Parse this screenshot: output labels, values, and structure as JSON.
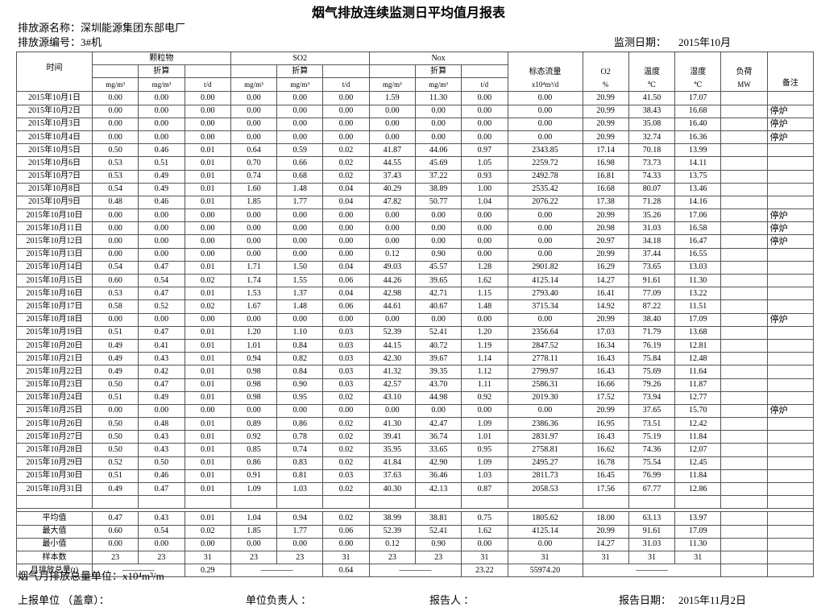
{
  "header": {
    "title": "烟气排放连续监测日平均值月报表",
    "source_name": "排放源名称：深圳能源集团东部电厂",
    "source_id": "排放源编号：3#机",
    "date_label": "监测日期：",
    "date": "2015年10月"
  },
  "table": {
    "head": {
      "time": "时间",
      "groups": [
        {
          "name": "颗粒物",
          "sub": "折算",
          "units": [
            "mg/m³",
            "mg/m³",
            "t/d"
          ]
        },
        {
          "name": "SO2",
          "sub": "折算",
          "units": [
            "mg/m³",
            "mg/m³",
            "t/d"
          ]
        },
        {
          "name": "Nox",
          "sub": "折算",
          "units": [
            "mg/m³",
            "mg/m³",
            "t/d"
          ]
        }
      ],
      "singles": [
        {
          "label": "标态流量",
          "unit": "x10⁴m³/d"
        },
        {
          "label": "O2",
          "unit": "%"
        },
        {
          "label": "温度",
          "unit": "℃"
        },
        {
          "label": "湿度",
          "unit": "℃"
        },
        {
          "label": "负荷",
          "unit": "MW"
        },
        {
          "label": "备注"
        }
      ]
    },
    "rows": [
      {
        "date": "2015年10月1日",
        "values": [
          "0.00",
          "0.00",
          "0.00",
          "0.00",
          "0.00",
          "0.00",
          "1.59",
          "11.30",
          "0.00",
          "0.00",
          "20.99",
          "41.50",
          "17.07"
        ]
      },
      {
        "date": "2015年10月2日",
        "values": [
          "0.00",
          "0.00",
          "0.00",
          "0.00",
          "0.00",
          "0.00",
          "0.00",
          "0.00",
          "0.00",
          "0.00",
          "20.99",
          "38.43",
          "16.68"
        ],
        "note": "停炉"
      },
      {
        "date": "2015年10月3日",
        "values": [
          "0.00",
          "0.00",
          "0.00",
          "0.00",
          "0.00",
          "0.00",
          "0.00",
          "0.00",
          "0.00",
          "0.00",
          "20.99",
          "35.08",
          "16.40"
        ],
        "note": "停炉"
      },
      {
        "date": "2015年10月4日",
        "values": [
          "0.00",
          "0.00",
          "0.00",
          "0.00",
          "0.00",
          "0.00",
          "0.00",
          "0.00",
          "0.00",
          "0.00",
          "20.99",
          "32.74",
          "16.36"
        ],
        "note": "停炉"
      },
      {
        "date": "2015年10月5日",
        "values": [
          "0.50",
          "0.46",
          "0.01",
          "0.64",
          "0.59",
          "0.02",
          "41.87",
          "44.06",
          "0.97",
          "2343.85",
          "17.14",
          "70.18",
          "13.99"
        ]
      },
      {
        "date": "2015年10月6日",
        "values": [
          "0.53",
          "0.51",
          "0.01",
          "0.70",
          "0.66",
          "0.02",
          "44.55",
          "45.69",
          "1.05",
          "2259.72",
          "16.98",
          "73.73",
          "14.11"
        ]
      },
      {
        "date": "2015年10月7日",
        "values": [
          "0.53",
          "0.49",
          "0.01",
          "0.74",
          "0.68",
          "0.02",
          "37.43",
          "37.22",
          "0.93",
          "2492.78",
          "16.81",
          "74.33",
          "13.75"
        ]
      },
      {
        "date": "2015年10月8日",
        "values": [
          "0.54",
          "0.49",
          "0.01",
          "1.60",
          "1.48",
          "0.04",
          "40.29",
          "38.89",
          "1.00",
          "2535.42",
          "16.68",
          "80.07",
          "13.46"
        ]
      },
      {
        "date": "2015年10月9日",
        "values": [
          "0.48",
          "0.46",
          "0.01",
          "1.85",
          "1.77",
          "0.04",
          "47.82",
          "50.77",
          "1.04",
          "2076.22",
          "17.38",
          "71.28",
          "14.16"
        ]
      },
      {
        "date": "2015年10月10日",
        "values": [
          "0.00",
          "0.00",
          "0.00",
          "0.00",
          "0.00",
          "0.00",
          "0.00",
          "0.00",
          "0.00",
          "0.00",
          "20.99",
          "35.26",
          "17.06"
        ],
        "note": "停炉"
      },
      {
        "date": "2015年10月11日",
        "values": [
          "0.00",
          "0.00",
          "0.00",
          "0.00",
          "0.00",
          "0.00",
          "0.00",
          "0.00",
          "0.00",
          "0.00",
          "20.98",
          "31.03",
          "16.58"
        ],
        "note": "停炉"
      },
      {
        "date": "2015年10月12日",
        "values": [
          "0.00",
          "0.00",
          "0.00",
          "0.00",
          "0.00",
          "0.00",
          "0.00",
          "0.00",
          "0.00",
          "0.00",
          "20.97",
          "34.18",
          "16.47"
        ],
        "note": "停炉"
      },
      {
        "date": "2015年10月13日",
        "values": [
          "0.00",
          "0.00",
          "0.00",
          "0.00",
          "0.00",
          "0.00",
          "0.12",
          "0.90",
          "0.00",
          "0.00",
          "20.99",
          "37.44",
          "16.55"
        ]
      },
      {
        "date": "2015年10月14日",
        "values": [
          "0.54",
          "0.47",
          "0.01",
          "1.71",
          "1.50",
          "0.04",
          "49.03",
          "45.57",
          "1.28",
          "2901.82",
          "16.29",
          "73.65",
          "13.03"
        ]
      },
      {
        "date": "2015年10月15日",
        "values": [
          "0.60",
          "0.54",
          "0.02",
          "1.74",
          "1.55",
          "0.06",
          "44.26",
          "39.65",
          "1.62",
          "4125.14",
          "14.27",
          "91.61",
          "11.30"
        ]
      },
      {
        "date": "2015年10月16日",
        "values": [
          "0.53",
          "0.47",
          "0.01",
          "1.53",
          "1.37",
          "0.04",
          "42.98",
          "42.71",
          "1.15",
          "2793.40",
          "16.41",
          "77.09",
          "13.22"
        ]
      },
      {
        "date": "2015年10月17日",
        "values": [
          "0.58",
          "0.52",
          "0.02",
          "1.67",
          "1.48",
          "0.06",
          "44.61",
          "40.67",
          "1.48",
          "3715.34",
          "14.92",
          "87.22",
          "11.51"
        ]
      },
      {
        "date": "2015年10月18日",
        "values": [
          "0.00",
          "0.00",
          "0.00",
          "0.00",
          "0.00",
          "0.00",
          "0.00",
          "0.00",
          "0.00",
          "0.00",
          "20.99",
          "38.40",
          "17.09"
        ],
        "note": "停炉"
      },
      {
        "date": "2015年10月19日",
        "values": [
          "0.51",
          "0.47",
          "0.01",
          "1.20",
          "1.10",
          "0.03",
          "52.39",
          "52.41",
          "1.20",
          "2356.64",
          "17.03",
          "71.79",
          "13.68"
        ]
      },
      {
        "date": "2015年10月20日",
        "values": [
          "0.49",
          "0.41",
          "0.01",
          "1.01",
          "0.84",
          "0.03",
          "44.15",
          "40.72",
          "1.19",
          "2847.52",
          "16.34",
          "76.19",
          "12.81"
        ]
      },
      {
        "date": "2015年10月21日",
        "values": [
          "0.49",
          "0.43",
          "0.01",
          "0.94",
          "0.82",
          "0.03",
          "42.30",
          "39.67",
          "1.14",
          "2778.11",
          "16.43",
          "75.84",
          "12.48"
        ]
      },
      {
        "date": "2015年10月22日",
        "values": [
          "0.49",
          "0.42",
          "0.01",
          "0.98",
          "0.84",
          "0.03",
          "41.32",
          "39.35",
          "1.12",
          "2799.97",
          "16.43",
          "75.69",
          "11.64"
        ]
      },
      {
        "date": "2015年10月23日",
        "values": [
          "0.50",
          "0.47",
          "0.01",
          "0.98",
          "0.90",
          "0.03",
          "42.57",
          "43.70",
          "1.11",
          "2586.31",
          "16.66",
          "79.26",
          "11.87"
        ]
      },
      {
        "date": "2015年10月24日",
        "values": [
          "0.51",
          "0.49",
          "0.01",
          "0.98",
          "0.95",
          "0.02",
          "43.10",
          "44.98",
          "0.92",
          "2019.30",
          "17.52",
          "73.94",
          "12.77"
        ]
      },
      {
        "date": "2015年10月25日",
        "values": [
          "0.00",
          "0.00",
          "0.00",
          "0.00",
          "0.00",
          "0.00",
          "0.00",
          "0.00",
          "0.00",
          "0.00",
          "20.99",
          "37.65",
          "15.70"
        ],
        "note": "停炉"
      },
      {
        "date": "2015年10月26日",
        "values": [
          "0.50",
          "0.48",
          "0.01",
          "0.89",
          "0.86",
          "0.02",
          "41.30",
          "42.47",
          "1.09",
          "2386.36",
          "16.95",
          "73.51",
          "12.42"
        ]
      },
      {
        "date": "2015年10月27日",
        "values": [
          "0.50",
          "0.43",
          "0.01",
          "0.92",
          "0.78",
          "0.02",
          "39.41",
          "36.74",
          "1.01",
          "2831.97",
          "16.43",
          "75.19",
          "11.84"
        ]
      },
      {
        "date": "2015年10月28日",
        "values": [
          "0.50",
          "0.43",
          "0.01",
          "0.85",
          "0.74",
          "0.02",
          "35.95",
          "33.65",
          "0.95",
          "2758.81",
          "16.62",
          "74.36",
          "12.07"
        ]
      },
      {
        "date": "2015年10月29日",
        "values": [
          "0.52",
          "0.50",
          "0.01",
          "0.86",
          "0.83",
          "0.02",
          "41.84",
          "42.90",
          "1.09",
          "2495.27",
          "16.78",
          "75.54",
          "12.45"
        ]
      },
      {
        "date": "2015年10月30日",
        "values": [
          "0.51",
          "0.46",
          "0.01",
          "0.91",
          "0.81",
          "0.03",
          "37.63",
          "36.46",
          "1.03",
          "2811.73",
          "16.45",
          "76.99",
          "11.84"
        ]
      },
      {
        "date": "2015年10月31日",
        "values": [
          "0.49",
          "0.47",
          "0.01",
          "1.09",
          "1.03",
          "0.02",
          "40.30",
          "42.13",
          "0.87",
          "2058.53",
          "17.56",
          "67.77",
          "12.86"
        ]
      }
    ],
    "summary": [
      {
        "label": "平均值",
        "values": [
          "0.47",
          "0.43",
          "0.01",
          "1.04",
          "0.94",
          "0.02",
          "38.99",
          "38.81",
          "0.75",
          "1805.62",
          "18.00",
          "63.13",
          "13.97"
        ]
      },
      {
        "label": "最大值",
        "values": [
          "0.60",
          "0.54",
          "0.02",
          "1.85",
          "1.77",
          "0.06",
          "52.39",
          "52.41",
          "1.62",
          "4125.14",
          "20.99",
          "91.61",
          "17.09"
        ]
      },
      {
        "label": "最小值",
        "values": [
          "0.00",
          "0.00",
          "0.00",
          "0.00",
          "0.00",
          "0.00",
          "0.12",
          "0.90",
          "0.00",
          "0.00",
          "14.27",
          "31.03",
          "11.30"
        ]
      },
      {
        "label": "样本数",
        "values": [
          "23",
          "23",
          "31",
          "23",
          "23",
          "31",
          "23",
          "23",
          "31",
          "31",
          "31",
          "31",
          "31"
        ]
      }
    ],
    "total_row": [
      "月排放总量(t)",
      "————",
      "0.29",
      "————",
      "0.64",
      "————",
      "23.22",
      "55974.20",
      "————"
    ]
  },
  "footer": {
    "unit_note": "烟气月排放总量单位：x10⁴m³/m",
    "unit": "上报单位 （盖章）：",
    "leader": "单位负责人 ：",
    "reporter": "报告人 ：",
    "report_date_label": "报告日期：",
    "report_date": "2015年11月2日"
  }
}
